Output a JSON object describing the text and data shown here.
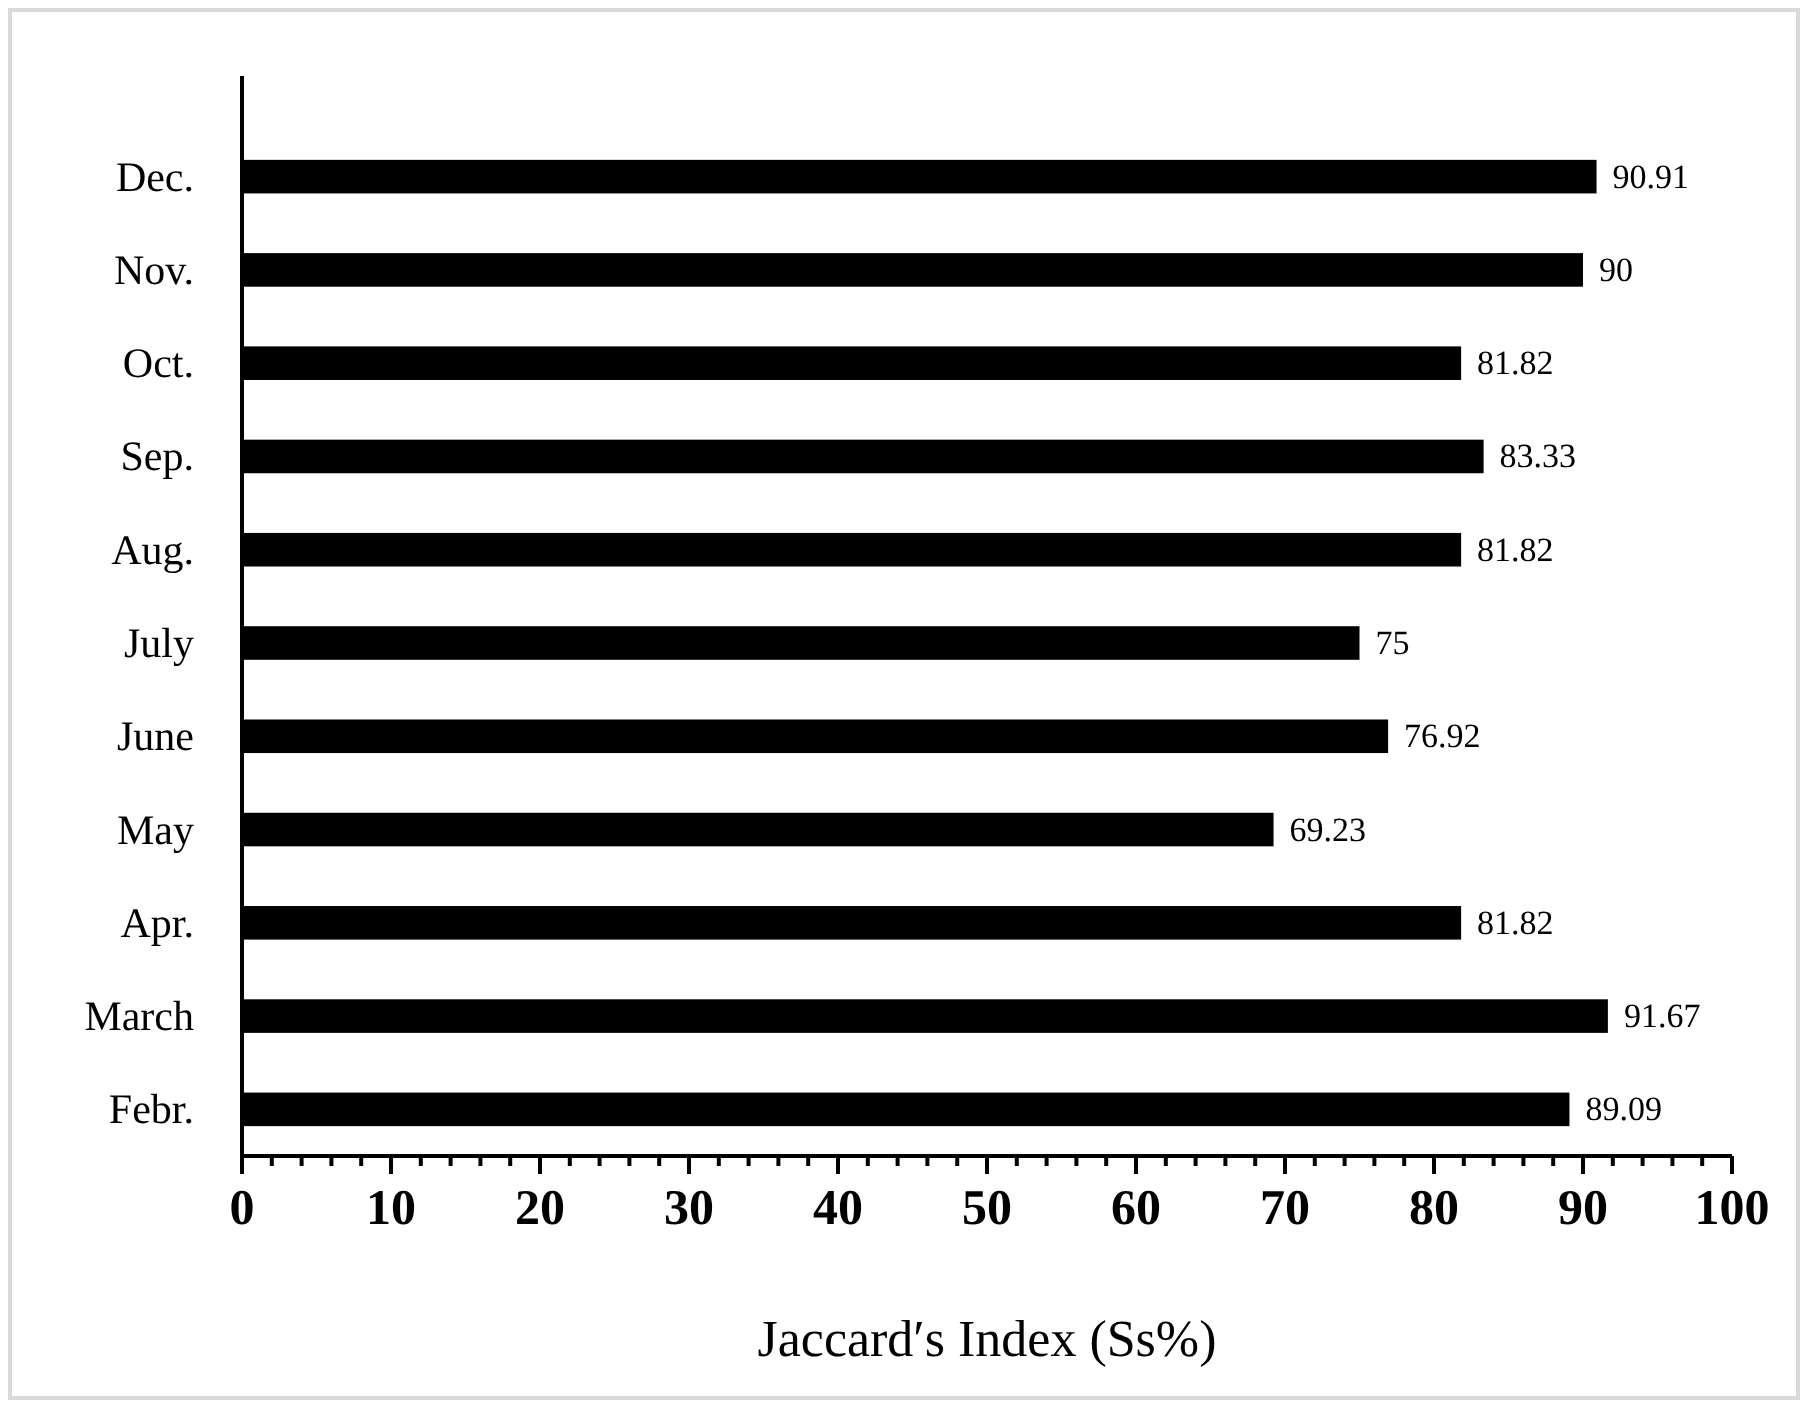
{
  "chart_data": {
    "type": "bar",
    "orientation": "horizontal",
    "xlabel": "Jaccard′s Index (Ss%)",
    "categories": [
      "Dec.",
      "Nov.",
      "Oct.",
      "Sep.",
      "Aug.",
      "July",
      "June",
      "May",
      "Apr.",
      "March",
      "Febr."
    ],
    "values": [
      90.91,
      90,
      81.82,
      83.33,
      81.82,
      75,
      76.92,
      69.23,
      81.82,
      91.67,
      89.09
    ],
    "color": "#000000",
    "data_labels": true,
    "grid": false,
    "xlim": [
      0,
      100
    ],
    "xticks": [
      0,
      {
        "value": 2,
        "label": null
      },
      {
        "value": 4,
        "label": null
      },
      {
        "value": 6,
        "label": null
      },
      {
        "value": 8,
        "label": null
      },
      10,
      {
        "value": 12,
        "label": null
      },
      {
        "value": 14,
        "label": null
      },
      {
        "value": 16,
        "label": null
      },
      {
        "value": 18,
        "label": null
      },
      20,
      {
        "value": 22,
        "label": null
      },
      {
        "value": 24,
        "label": null
      },
      {
        "value": 26,
        "label": null
      },
      {
        "value": 28,
        "label": null
      },
      30,
      {
        "value": 32,
        "label": null
      },
      {
        "value": 34,
        "label": null
      },
      {
        "value": 36,
        "label": null
      },
      {
        "value": 38,
        "label": null
      },
      40,
      {
        "value": 42,
        "label": null
      },
      {
        "value": 44,
        "label": null
      },
      {
        "value": 46,
        "label": null
      },
      {
        "value": 48,
        "label": null
      },
      50,
      {
        "value": 52,
        "label": null
      },
      {
        "value": 54,
        "label": null
      },
      {
        "value": 56,
        "label": null
      },
      {
        "value": 58,
        "label": null
      },
      60,
      {
        "value": 62,
        "label": null
      },
      {
        "value": 64,
        "label": null
      },
      {
        "value": 66,
        "label": null
      },
      {
        "value": 68,
        "label": null
      },
      70,
      {
        "value": 72,
        "label": null
      },
      {
        "value": 74,
        "label": null
      },
      {
        "value": 76,
        "label": null
      },
      {
        "value": 78,
        "label": null
      },
      80,
      {
        "value": 82,
        "label": null
      },
      {
        "value": 84,
        "label": null
      },
      {
        "value": 86,
        "label": null
      },
      {
        "value": 88,
        "label": null
      },
      90,
      {
        "value": 92,
        "label": null
      },
      {
        "value": 94,
        "label": null
      },
      {
        "value": 96,
        "label": null
      },
      {
        "value": 98,
        "label": null
      },
      100
    ]
  }
}
